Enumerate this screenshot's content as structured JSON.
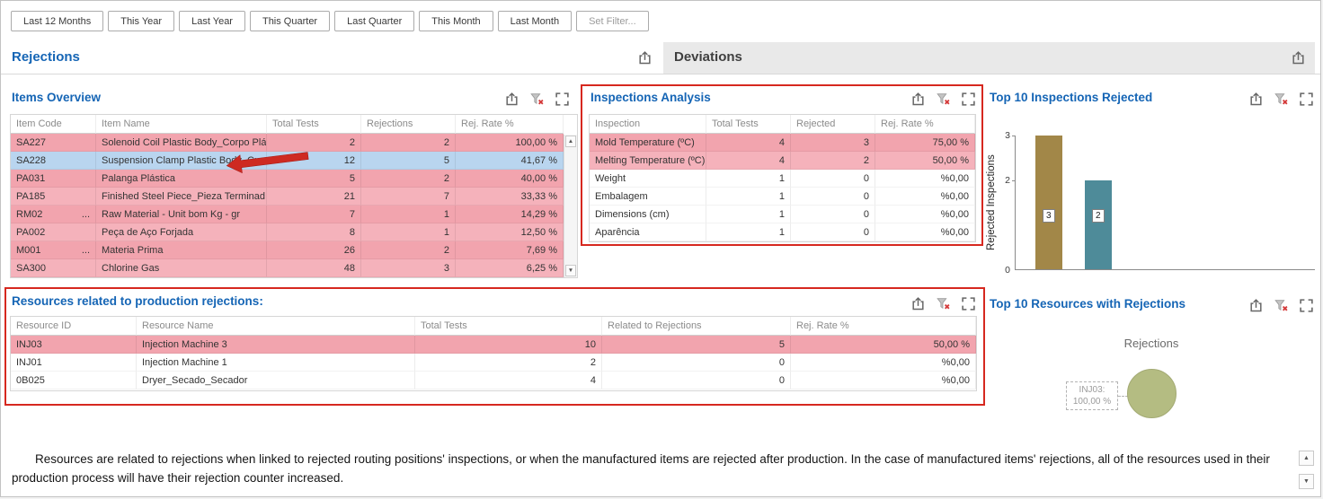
{
  "toolbar": {
    "buttons": [
      "Last 12 Months",
      "This Year",
      "Last Year",
      "This Quarter",
      "Last Quarter",
      "This Month",
      "Last Month"
    ],
    "set_filter": "Set Filter..."
  },
  "tabs": {
    "active": "Rejections",
    "inactive": "Deviations"
  },
  "icons": {
    "panel_actions": [
      "export-icon",
      "clear-filter-icon",
      "expand-icon"
    ],
    "scroll_up": "▲",
    "scroll_down": "▼"
  },
  "items_overview": {
    "title": "Items Overview",
    "columns": {
      "code": "Item Code",
      "name": "Item Name",
      "total": "Total Tests",
      "rej": "Rejections",
      "rate": "Rej. Rate %"
    },
    "rows": [
      {
        "code": "SA227",
        "name": "Solenoid Coil Plastic Body_Corpo Plá...",
        "total": "2",
        "rej": "2",
        "rate": "100,00 %"
      },
      {
        "code": "SA228",
        "name": "Suspension Clamp Plastic Body_Cue...",
        "total": "12",
        "rej": "5",
        "rate": "41,67 %"
      },
      {
        "code": "PA031",
        "name": "Palanga Plástica",
        "total": "5",
        "rej": "2",
        "rate": "40,00 %"
      },
      {
        "code": "PA185",
        "name": "Finished Steel Piece_Pieza Terminad...",
        "total": "21",
        "rej": "7",
        "rate": "33,33 %"
      },
      {
        "code": "RM02",
        "ellipsis": "...",
        "name": "Raw Material - Unit bom Kg - gr",
        "total": "7",
        "rej": "1",
        "rate": "14,29 %"
      },
      {
        "code": "PA002",
        "name": "Peça de Aço Forjada",
        "total": "8",
        "rej": "1",
        "rate": "12,50 %"
      },
      {
        "code": "M001",
        "ellipsis": "...",
        "name": "Materia Prima",
        "total": "26",
        "rej": "2",
        "rate": "7,69 %"
      },
      {
        "code": "SA300",
        "name": "Chlorine Gas",
        "total": "48",
        "rej": "3",
        "rate": "6,25 %"
      }
    ]
  },
  "inspections_analysis": {
    "title": "Inspections Analysis",
    "columns": {
      "inspection": "Inspection",
      "total": "Total Tests",
      "rejected": "Rejected",
      "rate": "Rej. Rate %"
    },
    "rows": [
      {
        "inspection": "Mold Temperature (ºC)",
        "total": "4",
        "rejected": "3",
        "rate": "75,00 %"
      },
      {
        "inspection": "Melting Temperature (ºC)",
        "total": "4",
        "rejected": "2",
        "rate": "50,00 %"
      },
      {
        "inspection": "Weight",
        "total": "1",
        "rejected": "0",
        "rate": "%0,00"
      },
      {
        "inspection": "Embalagem",
        "total": "1",
        "rejected": "0",
        "rate": "%0,00"
      },
      {
        "inspection": "Dimensions (cm)",
        "total": "1",
        "rejected": "0",
        "rate": "%0,00"
      },
      {
        "inspection": "Aparência",
        "total": "1",
        "rejected": "0",
        "rate": "%0,00"
      }
    ]
  },
  "resources": {
    "title": "Resources related to production rejections:",
    "columns": {
      "id": "Resource ID",
      "name": "Resource Name",
      "total": "Total Tests",
      "related": "Related to Rejections",
      "rate": "Rej. Rate %"
    },
    "rows": [
      {
        "id": "INJ03",
        "name": "Injection Machine 3",
        "total": "10",
        "related": "5",
        "rate": "50,00 %"
      },
      {
        "id": "INJ01",
        "name": "Injection Machine 1",
        "total": "2",
        "related": "0",
        "rate": "%0,00"
      },
      {
        "id": "0B025",
        "name": "Dryer_Secado_Secador",
        "total": "4",
        "related": "0",
        "rate": "%0,00"
      }
    ]
  },
  "chart_data": [
    {
      "type": "bar",
      "title": "Top 10 Inspections Rejected",
      "ylabel": "Rejected Inspections",
      "categories": [
        "Mold Temperature (ºC)",
        "Melting Temperature (ºC)"
      ],
      "values": [
        3,
        2
      ],
      "bar_labels": [
        "3",
        "2"
      ],
      "colors": [
        "#a28748",
        "#4e8b99"
      ],
      "ylim": [
        0,
        3
      ],
      "yticks_top_to_bottom": [
        "3",
        "2",
        "0"
      ],
      "grid": false,
      "legend": "none"
    },
    {
      "type": "pie",
      "panel_title": "Top 10 Resources with Rejections",
      "title": "Rejections",
      "labels": [
        "INJ03"
      ],
      "values": [
        100
      ],
      "value_labels": [
        "100,00 %"
      ],
      "callout": {
        "line1": "INJ03:",
        "line2": "100,00 %"
      },
      "colors": [
        "#b4bc82"
      ]
    }
  ],
  "footer": {
    "text": "Resources are related to rejections when linked to rejected routing positions' inspections, or when the manufactured items are rejected after production. In the case of manufactured items' rejections, all of the resources used in their production process will have their rejection counter increased."
  }
}
